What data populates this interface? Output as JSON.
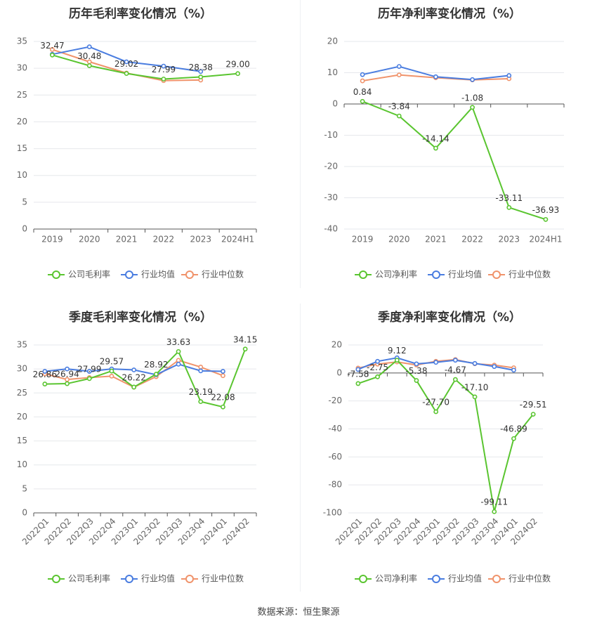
{
  "source": "数据来源：恒生聚源",
  "colors": {
    "company": "#5ac530",
    "avg": "#4a7de0",
    "median": "#f0936b",
    "grid": "#e6e8ec",
    "axis": "#666666",
    "label": "#333333",
    "title": "#333333"
  },
  "chart_data": [
    {
      "type": "line",
      "title": "历年毛利率变化情况（%）",
      "categories": [
        "2019",
        "2020",
        "2021",
        "2022",
        "2023",
        "2024H1"
      ],
      "ylim": [
        0,
        35
      ],
      "yticks": [
        0,
        5,
        10,
        15,
        20,
        25,
        30,
        35
      ],
      "series": [
        {
          "name": "公司毛利率",
          "values": [
            32.47,
            30.48,
            29.02,
            27.99,
            28.38,
            29.0
          ],
          "labeled": true
        },
        {
          "name": "行业均值",
          "values": [
            32.6,
            34.0,
            31.2,
            30.4,
            29.4,
            null
          ]
        },
        {
          "name": "行业中位数",
          "values": [
            33.5,
            31.2,
            29.1,
            27.7,
            27.8,
            null
          ]
        }
      ],
      "labels": [
        "32.47",
        "30.48",
        "29.02",
        "27.99",
        "28.38",
        "29.00"
      ]
    },
    {
      "type": "line",
      "title": "历年净利率变化情况（%）",
      "categories": [
        "2019",
        "2020",
        "2021",
        "2022",
        "2023",
        "2024H1"
      ],
      "ylim": [
        -40,
        20
      ],
      "yticks": [
        -40,
        -30,
        -20,
        -10,
        0,
        10,
        20
      ],
      "series": [
        {
          "name": "公司净利率",
          "values": [
            0.84,
            -3.84,
            -14.14,
            -1.08,
            -33.11,
            -36.93
          ],
          "labeled": true
        },
        {
          "name": "行业均值",
          "values": [
            9.4,
            12.0,
            8.7,
            7.8,
            9.1,
            null
          ]
        },
        {
          "name": "行业中位数",
          "values": [
            7.4,
            9.3,
            8.4,
            7.7,
            8.1,
            null
          ]
        }
      ],
      "labels": [
        "0.84",
        "-3.84",
        "-14.14",
        "-1.08",
        "-33.11",
        "-36.93"
      ]
    },
    {
      "type": "line",
      "title": "季度毛利率变化情况（%）",
      "categories": [
        "2022Q1",
        "2022Q2",
        "2022Q3",
        "2022Q4",
        "2023Q1",
        "2023Q2",
        "2023Q3",
        "2023Q4",
        "2024Q1",
        "2024Q2"
      ],
      "ylim": [
        0,
        35
      ],
      "yticks": [
        0,
        5,
        10,
        15,
        20,
        25,
        30,
        35
      ],
      "series": [
        {
          "name": "公司毛利率",
          "values": [
            26.86,
            26.94,
            27.99,
            29.57,
            26.22,
            28.92,
            33.63,
            23.19,
            22.08,
            34.15
          ],
          "labeled": true
        },
        {
          "name": "行业均值",
          "values": [
            29.5,
            30.0,
            29.5,
            30.0,
            29.8,
            28.8,
            31.0,
            29.6,
            29.5,
            null
          ]
        },
        {
          "name": "行业中位数",
          "values": [
            29.0,
            27.8,
            28.2,
            28.5,
            26.2,
            28.4,
            31.8,
            30.4,
            28.6,
            null
          ]
        }
      ],
      "labels": [
        "26.86",
        "26.94",
        "27.99",
        "29.57",
        "26.22",
        "28.92",
        "33.63",
        "23.19",
        "22.08",
        "34.15"
      ]
    },
    {
      "type": "line",
      "title": "季度净利率变化情况（%）",
      "categories": [
        "2022Q1",
        "2022Q2",
        "2022Q3",
        "2022Q4",
        "2023Q1",
        "2023Q2",
        "2023Q3",
        "2023Q4",
        "2024Q1",
        "2024Q2"
      ],
      "ylim": [
        -100,
        20
      ],
      "yticks": [
        -100,
        -80,
        -60,
        -40,
        -20,
        0,
        20
      ],
      "series": [
        {
          "name": "公司净利率",
          "values": [
            -7.58,
            -2.75,
            9.12,
            -5.38,
            -27.7,
            -4.67,
            -17.1,
            -99.11,
            -46.89,
            -29.51
          ],
          "labeled": true
        },
        {
          "name": "行业均值",
          "values": [
            2.5,
            8.3,
            10.8,
            6.5,
            7.6,
            9.1,
            6.8,
            4.6,
            2.0,
            null
          ]
        },
        {
          "name": "行业中位数",
          "values": [
            3.5,
            6.3,
            7.9,
            5.7,
            8.3,
            9.6,
            6.6,
            5.6,
            3.7,
            null
          ]
        }
      ],
      "labels": [
        "-7.58",
        "-2.75",
        "9.12",
        "-5.38",
        "-27.70",
        "-4.67",
        "-17.10",
        "-99.11",
        "-46.89",
        "-29.51"
      ]
    }
  ]
}
